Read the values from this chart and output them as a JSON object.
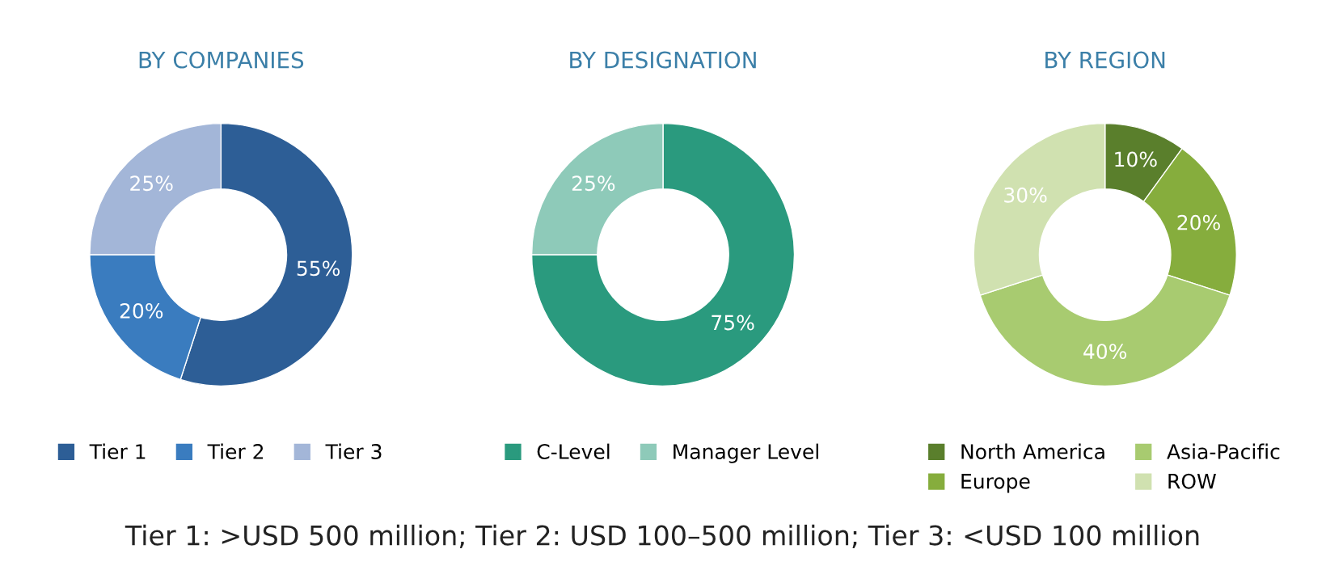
{
  "chart_data": [
    {
      "type": "donut",
      "title": "BY COMPANIES",
      "categories": [
        "Tier 1",
        "Tier 2",
        "Tier 3"
      ],
      "values": [
        55,
        20,
        25
      ],
      "colors": [
        "#2d5e96",
        "#3a7cbf",
        "#a3b6d8"
      ],
      "value_labels": [
        "55%",
        "20%",
        "25%"
      ],
      "legend": "bottom",
      "annotations": [
        "Tier 1: >USD 500 million; Tier 2: USD 100–500 million; Tier 3: <USD 100 million"
      ]
    },
    {
      "type": "donut",
      "title": "BY DESIGNATION",
      "categories": [
        "C-Level",
        "Manager Level"
      ],
      "values": [
        75,
        25
      ],
      "colors": [
        "#2a9a7e",
        "#8ecab9"
      ],
      "value_labels": [
        "75%",
        "25%"
      ],
      "legend": "bottom"
    },
    {
      "type": "donut",
      "title": "BY REGION",
      "categories": [
        "North America",
        "Europe",
        "Asia-Pacific",
        "ROW"
      ],
      "values": [
        10,
        20,
        40,
        30
      ],
      "colors": [
        "#5a7f2c",
        "#86ad3d",
        "#a8cb70",
        "#d0e1b0"
      ],
      "value_labels": [
        "10%",
        "20%",
        "40%",
        "30%"
      ],
      "legend": "bottom"
    }
  ]
}
